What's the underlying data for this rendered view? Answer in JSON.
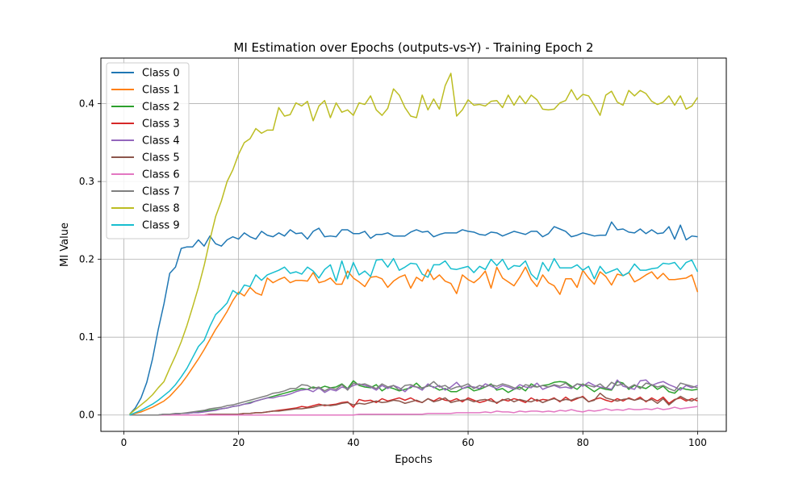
{
  "chart_data": {
    "type": "line",
    "title": "MI Estimation over Epochs (outputs-vs-Y) - Training Epoch 2",
    "xlabel": "Epochs",
    "ylabel": "MI Value",
    "xlim": [
      -4,
      105
    ],
    "ylim": [
      -0.021,
      0.4586
    ],
    "x_ticks": [
      0,
      20,
      40,
      60,
      80,
      100
    ],
    "x_tick_labels": [
      "0",
      "20",
      "40",
      "60",
      "80",
      "100"
    ],
    "y_ticks": [
      0.0,
      0.1,
      0.2,
      0.3,
      0.4
    ],
    "y_tick_labels": [
      "0.0",
      "0.1",
      "0.2",
      "0.3",
      "0.4"
    ],
    "grid": true,
    "legend_position": "upper left",
    "x": [
      1,
      2,
      3,
      4,
      5,
      6,
      7,
      8,
      9,
      10,
      11,
      12,
      13,
      14,
      15,
      16,
      17,
      18,
      19,
      20,
      21,
      22,
      23,
      24,
      25,
      26,
      27,
      28,
      29,
      30,
      31,
      32,
      33,
      34,
      35,
      36,
      37,
      38,
      39,
      40,
      41,
      42,
      43,
      44,
      45,
      46,
      47,
      48,
      49,
      50,
      51,
      52,
      53,
      54,
      55,
      56,
      57,
      58,
      59,
      60,
      61,
      62,
      63,
      64,
      65,
      66,
      67,
      68,
      69,
      70,
      71,
      72,
      73,
      74,
      75,
      76,
      77,
      78,
      79,
      80,
      81,
      82,
      83,
      84,
      85,
      86,
      87,
      88,
      89,
      90,
      91,
      92,
      93,
      94,
      95,
      96,
      97,
      98,
      99,
      100
    ],
    "series": [
      {
        "name": "Class 0",
        "color": "#1f77b4",
        "values": [
          0.001,
          0.009,
          0.022,
          0.042,
          0.072,
          0.11,
          0.143,
          0.182,
          0.19,
          0.214,
          0.216,
          0.216,
          0.225,
          0.217,
          0.23,
          0.22,
          0.217,
          0.225,
          0.229,
          0.226,
          0.234,
          0.229,
          0.226,
          0.236,
          0.231,
          0.229,
          0.234,
          0.23,
          0.238,
          0.233,
          0.234,
          0.226,
          0.236,
          0.24,
          0.229,
          0.23,
          0.229,
          0.238,
          0.238,
          0.233,
          0.233,
          0.236,
          0.227,
          0.232,
          0.232,
          0.234,
          0.23,
          0.23,
          0.23,
          0.235,
          0.238,
          0.235,
          0.236,
          0.229,
          0.232,
          0.234,
          0.234,
          0.234,
          0.238,
          0.236,
          0.235,
          0.232,
          0.231,
          0.235,
          0.234,
          0.23,
          0.233,
          0.236,
          0.234,
          0.232,
          0.236,
          0.236,
          0.229,
          0.233,
          0.242,
          0.239,
          0.236,
          0.229,
          0.231,
          0.234,
          0.232,
          0.23,
          0.231,
          0.231,
          0.248,
          0.238,
          0.239,
          0.235,
          0.234,
          0.239,
          0.233,
          0.238,
          0.233,
          0.234,
          0.242,
          0.226,
          0.244,
          0.225,
          0.23,
          0.229
        ]
      },
      {
        "name": "Class 1",
        "color": "#ff7f0e",
        "values": [
          0.0,
          0.002,
          0.004,
          0.007,
          0.01,
          0.014,
          0.018,
          0.024,
          0.032,
          0.04,
          0.05,
          0.061,
          0.072,
          0.084,
          0.097,
          0.11,
          0.121,
          0.133,
          0.147,
          0.158,
          0.153,
          0.164,
          0.157,
          0.154,
          0.176,
          0.17,
          0.174,
          0.177,
          0.17,
          0.173,
          0.173,
          0.172,
          0.183,
          0.17,
          0.172,
          0.176,
          0.168,
          0.168,
          0.185,
          0.176,
          0.171,
          0.165,
          0.177,
          0.178,
          0.175,
          0.164,
          0.172,
          0.177,
          0.18,
          0.163,
          0.177,
          0.172,
          0.187,
          0.174,
          0.18,
          0.172,
          0.169,
          0.156,
          0.18,
          0.174,
          0.17,
          0.176,
          0.185,
          0.163,
          0.19,
          0.176,
          0.171,
          0.166,
          0.177,
          0.19,
          0.174,
          0.165,
          0.18,
          0.17,
          0.166,
          0.155,
          0.175,
          0.175,
          0.164,
          0.186,
          0.176,
          0.168,
          0.184,
          0.178,
          0.167,
          0.181,
          0.179,
          0.183,
          0.171,
          0.175,
          0.18,
          0.184,
          0.175,
          0.182,
          0.174,
          0.174,
          0.175,
          0.176,
          0.18,
          0.158
        ]
      },
      {
        "name": "Class 2",
        "color": "#2ca02c",
        "values": [
          0.0,
          0.0,
          0.0,
          0.0,
          0.0,
          0.0,
          0.001,
          0.001,
          0.001,
          0.002,
          0.002,
          0.003,
          0.004,
          0.005,
          0.006,
          0.007,
          0.008,
          0.009,
          0.011,
          0.012,
          0.014,
          0.016,
          0.018,
          0.02,
          0.022,
          0.024,
          0.026,
          0.028,
          0.03,
          0.032,
          0.034,
          0.033,
          0.036,
          0.034,
          0.037,
          0.035,
          0.036,
          0.04,
          0.034,
          0.044,
          0.038,
          0.036,
          0.035,
          0.039,
          0.031,
          0.036,
          0.034,
          0.031,
          0.033,
          0.035,
          0.041,
          0.034,
          0.038,
          0.036,
          0.032,
          0.034,
          0.03,
          0.03,
          0.034,
          0.036,
          0.031,
          0.033,
          0.036,
          0.04,
          0.032,
          0.034,
          0.029,
          0.033,
          0.036,
          0.031,
          0.04,
          0.036,
          0.038,
          0.039,
          0.042,
          0.043,
          0.042,
          0.037,
          0.033,
          0.04,
          0.035,
          0.03,
          0.035,
          0.033,
          0.032,
          0.043,
          0.041,
          0.033,
          0.038,
          0.036,
          0.034,
          0.039,
          0.033,
          0.037,
          0.03,
          0.028,
          0.035,
          0.033,
          0.032,
          0.033
        ]
      },
      {
        "name": "Class 3",
        "color": "#d62728",
        "values": [
          0.0,
          0.0,
          0.0,
          0.0,
          0.0,
          0.0,
          0.0,
          0.0,
          0.0,
          0.0,
          0.0,
          0.0,
          0.0,
          0.0,
          0.001,
          0.001,
          0.001,
          0.001,
          0.001,
          0.001,
          0.002,
          0.002,
          0.003,
          0.003,
          0.004,
          0.005,
          0.006,
          0.007,
          0.008,
          0.009,
          0.011,
          0.01,
          0.012,
          0.014,
          0.012,
          0.013,
          0.014,
          0.016,
          0.017,
          0.01,
          0.02,
          0.018,
          0.019,
          0.016,
          0.021,
          0.018,
          0.02,
          0.022,
          0.019,
          0.022,
          0.018,
          0.016,
          0.021,
          0.018,
          0.022,
          0.019,
          0.018,
          0.021,
          0.017,
          0.022,
          0.019,
          0.016,
          0.018,
          0.021,
          0.015,
          0.02,
          0.018,
          0.021,
          0.019,
          0.016,
          0.022,
          0.018,
          0.02,
          0.019,
          0.022,
          0.017,
          0.023,
          0.018,
          0.021,
          0.024,
          0.017,
          0.02,
          0.022,
          0.019,
          0.017,
          0.021,
          0.018,
          0.022,
          0.019,
          0.023,
          0.017,
          0.022,
          0.018,
          0.023,
          0.015,
          0.02,
          0.022,
          0.018,
          0.021,
          0.018
        ]
      },
      {
        "name": "Class 4",
        "color": "#9467bd",
        "values": [
          0.0,
          0.0,
          0.0,
          0.0,
          0.0,
          0.0,
          0.001,
          0.001,
          0.001,
          0.002,
          0.002,
          0.003,
          0.003,
          0.004,
          0.005,
          0.006,
          0.008,
          0.009,
          0.011,
          0.012,
          0.014,
          0.015,
          0.018,
          0.02,
          0.022,
          0.022,
          0.024,
          0.025,
          0.027,
          0.03,
          0.032,
          0.033,
          0.03,
          0.035,
          0.029,
          0.033,
          0.031,
          0.036,
          0.034,
          0.038,
          0.04,
          0.038,
          0.036,
          0.032,
          0.038,
          0.034,
          0.038,
          0.035,
          0.03,
          0.037,
          0.036,
          0.032,
          0.04,
          0.035,
          0.038,
          0.032,
          0.036,
          0.042,
          0.034,
          0.037,
          0.036,
          0.034,
          0.04,
          0.037,
          0.034,
          0.038,
          0.036,
          0.033,
          0.039,
          0.036,
          0.035,
          0.041,
          0.033,
          0.036,
          0.038,
          0.035,
          0.036,
          0.034,
          0.04,
          0.037,
          0.042,
          0.038,
          0.036,
          0.035,
          0.033,
          0.045,
          0.037,
          0.035,
          0.033,
          0.044,
          0.045,
          0.038,
          0.041,
          0.043,
          0.039,
          0.036,
          0.032,
          0.038,
          0.035,
          0.038
        ]
      },
      {
        "name": "Class 5",
        "color": "#8c564b",
        "values": [
          0.0,
          0.0,
          0.0,
          0.0,
          0.0,
          0.0,
          0.0,
          0.0,
          0.0,
          0.0,
          0.0,
          0.0,
          0.0,
          0.0,
          0.001,
          0.001,
          0.001,
          0.001,
          0.001,
          0.001,
          0.002,
          0.002,
          0.003,
          0.003,
          0.004,
          0.005,
          0.005,
          0.006,
          0.007,
          0.008,
          0.008,
          0.009,
          0.01,
          0.012,
          0.013,
          0.012,
          0.013,
          0.015,
          0.016,
          0.013,
          0.015,
          0.014,
          0.016,
          0.018,
          0.016,
          0.017,
          0.019,
          0.018,
          0.015,
          0.017,
          0.019,
          0.016,
          0.021,
          0.017,
          0.019,
          0.022,
          0.016,
          0.018,
          0.019,
          0.02,
          0.017,
          0.019,
          0.02,
          0.018,
          0.016,
          0.019,
          0.021,
          0.017,
          0.02,
          0.018,
          0.017,
          0.02,
          0.016,
          0.019,
          0.021,
          0.018,
          0.02,
          0.019,
          0.022,
          0.023,
          0.017,
          0.019,
          0.028,
          0.022,
          0.02,
          0.018,
          0.02,
          0.021,
          0.019,
          0.021,
          0.018,
          0.02,
          0.015,
          0.021,
          0.013,
          0.019,
          0.024,
          0.02,
          0.018,
          0.022
        ]
      },
      {
        "name": "Class 6",
        "color": "#e377c2",
        "values": [
          0.0,
          0.0,
          0.0,
          0.0,
          0.0,
          0.0,
          0.0,
          0.0,
          0.0,
          0.0,
          0.0,
          0.0,
          0.0,
          0.0,
          0.0,
          0.0,
          0.0,
          0.0,
          0.0,
          0.0,
          0.0,
          0.0,
          0.0,
          0.0,
          0.0,
          0.0,
          0.0,
          0.0,
          0.0,
          0.0,
          0.0,
          0.0,
          0.0,
          0.0,
          0.0,
          0.0,
          0.0,
          0.0,
          0.0,
          0.0,
          0.001,
          0.001,
          0.001,
          0.001,
          0.001,
          0.001,
          0.001,
          0.001,
          0.001,
          0.001,
          0.001,
          0.001,
          0.002,
          0.002,
          0.002,
          0.002,
          0.002,
          0.003,
          0.003,
          0.003,
          0.003,
          0.003,
          0.004,
          0.003,
          0.005,
          0.004,
          0.004,
          0.003,
          0.005,
          0.004,
          0.005,
          0.005,
          0.004,
          0.005,
          0.004,
          0.006,
          0.005,
          0.007,
          0.005,
          0.004,
          0.006,
          0.005,
          0.006,
          0.008,
          0.006,
          0.007,
          0.006,
          0.008,
          0.007,
          0.007,
          0.008,
          0.007,
          0.009,
          0.007,
          0.008,
          0.01,
          0.008,
          0.009,
          0.01,
          0.011
        ]
      },
      {
        "name": "Class 7",
        "color": "#7f7f7f",
        "values": [
          0.0,
          0.0,
          0.0,
          0.0,
          0.0,
          0.0,
          0.001,
          0.001,
          0.002,
          0.002,
          0.003,
          0.004,
          0.005,
          0.006,
          0.008,
          0.009,
          0.01,
          0.012,
          0.013,
          0.015,
          0.017,
          0.019,
          0.021,
          0.023,
          0.025,
          0.028,
          0.029,
          0.031,
          0.034,
          0.034,
          0.039,
          0.038,
          0.034,
          0.036,
          0.031,
          0.035,
          0.033,
          0.039,
          0.032,
          0.041,
          0.039,
          0.04,
          0.037,
          0.034,
          0.04,
          0.036,
          0.038,
          0.032,
          0.038,
          0.039,
          0.036,
          0.035,
          0.037,
          0.043,
          0.036,
          0.038,
          0.033,
          0.036,
          0.037,
          0.04,
          0.034,
          0.038,
          0.036,
          0.039,
          0.037,
          0.04,
          0.038,
          0.035,
          0.033,
          0.039,
          0.037,
          0.036,
          0.038,
          0.036,
          0.039,
          0.037,
          0.041,
          0.035,
          0.04,
          0.039,
          0.038,
          0.036,
          0.04,
          0.034,
          0.042,
          0.038,
          0.04,
          0.035,
          0.039,
          0.034,
          0.041,
          0.039,
          0.036,
          0.038,
          0.034,
          0.031,
          0.041,
          0.039,
          0.037,
          0.035
        ]
      },
      {
        "name": "Class 8",
        "color": "#bcbd22",
        "values": [
          0.001,
          0.007,
          0.013,
          0.019,
          0.026,
          0.035,
          0.043,
          0.06,
          0.076,
          0.094,
          0.115,
          0.139,
          0.164,
          0.192,
          0.225,
          0.255,
          0.275,
          0.3,
          0.315,
          0.335,
          0.35,
          0.355,
          0.368,
          0.362,
          0.366,
          0.366,
          0.395,
          0.384,
          0.386,
          0.401,
          0.397,
          0.403,
          0.378,
          0.397,
          0.404,
          0.382,
          0.401,
          0.389,
          0.392,
          0.385,
          0.401,
          0.399,
          0.41,
          0.392,
          0.385,
          0.394,
          0.419,
          0.411,
          0.395,
          0.384,
          0.382,
          0.411,
          0.392,
          0.406,
          0.393,
          0.423,
          0.439,
          0.384,
          0.392,
          0.405,
          0.398,
          0.399,
          0.397,
          0.403,
          0.404,
          0.395,
          0.411,
          0.398,
          0.41,
          0.4,
          0.411,
          0.405,
          0.393,
          0.392,
          0.393,
          0.401,
          0.404,
          0.418,
          0.405,
          0.412,
          0.41,
          0.398,
          0.385,
          0.411,
          0.416,
          0.402,
          0.398,
          0.417,
          0.41,
          0.417,
          0.413,
          0.403,
          0.399,
          0.402,
          0.41,
          0.398,
          0.41,
          0.393,
          0.397,
          0.408
        ]
      },
      {
        "name": "Class 9",
        "color": "#17becf",
        "values": [
          0.0,
          0.003,
          0.006,
          0.01,
          0.014,
          0.019,
          0.025,
          0.031,
          0.039,
          0.049,
          0.06,
          0.074,
          0.088,
          0.096,
          0.114,
          0.129,
          0.136,
          0.144,
          0.16,
          0.155,
          0.167,
          0.165,
          0.18,
          0.173,
          0.18,
          0.183,
          0.186,
          0.19,
          0.182,
          0.184,
          0.181,
          0.19,
          0.185,
          0.176,
          0.187,
          0.193,
          0.172,
          0.198,
          0.175,
          0.196,
          0.18,
          0.185,
          0.178,
          0.199,
          0.2,
          0.19,
          0.201,
          0.186,
          0.19,
          0.195,
          0.194,
          0.181,
          0.177,
          0.193,
          0.193,
          0.198,
          0.188,
          0.187,
          0.189,
          0.191,
          0.183,
          0.191,
          0.187,
          0.2,
          0.192,
          0.2,
          0.187,
          0.192,
          0.191,
          0.198,
          0.181,
          0.174,
          0.196,
          0.185,
          0.201,
          0.189,
          0.189,
          0.189,
          0.193,
          0.186,
          0.191,
          0.175,
          0.191,
          0.182,
          0.185,
          0.188,
          0.179,
          0.183,
          0.194,
          0.186,
          0.186,
          0.188,
          0.189,
          0.195,
          0.194,
          0.196,
          0.187,
          0.196,
          0.199,
          0.184
        ]
      }
    ]
  }
}
